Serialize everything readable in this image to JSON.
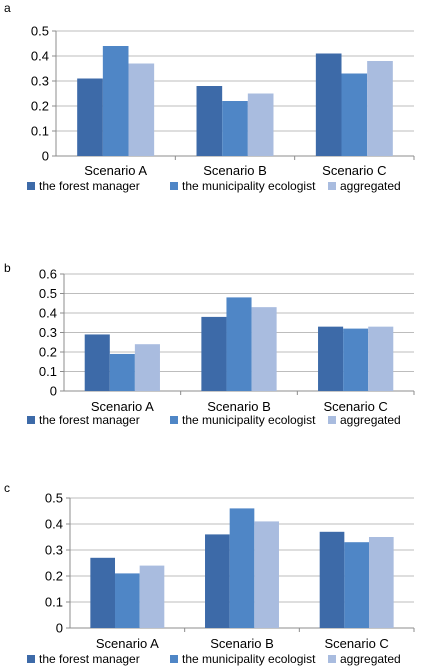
{
  "chart_data": [
    {
      "panel_label": "a",
      "type": "bar",
      "categories": [
        "Scenario A",
        "Scenario B",
        "Scenario C"
      ],
      "series": [
        {
          "name": "the forest manager",
          "values": [
            0.31,
            0.28,
            0.41
          ]
        },
        {
          "name": "the municipality ecologist",
          "values": [
            0.44,
            0.22,
            0.33
          ]
        },
        {
          "name": "aggregated",
          "values": [
            0.37,
            0.25,
            0.38
          ]
        }
      ],
      "yticks": [
        "0",
        "0.1",
        "0.2",
        "0.3",
        "0.4",
        "0.5"
      ],
      "ylim": [
        0,
        0.5
      ],
      "grid": true,
      "legend": "bottom"
    },
    {
      "panel_label": "b",
      "type": "bar",
      "categories": [
        "Scenario A",
        "Scenario B",
        "Scenario C"
      ],
      "series": [
        {
          "name": "the forest manager",
          "values": [
            0.29,
            0.38,
            0.33
          ]
        },
        {
          "name": "the municipality ecologist",
          "values": [
            0.19,
            0.48,
            0.32
          ]
        },
        {
          "name": "aggregated",
          "values": [
            0.24,
            0.43,
            0.33
          ]
        }
      ],
      "yticks": [
        "0",
        "0.1",
        "0.2",
        "0.3",
        "0.4",
        "0.5",
        "0.6"
      ],
      "ylim": [
        0,
        0.6
      ],
      "grid": true,
      "legend": "bottom"
    },
    {
      "panel_label": "c",
      "type": "bar",
      "categories": [
        "Scenario A",
        "Scenario B",
        "Scenario C"
      ],
      "series": [
        {
          "name": "the forest manager",
          "values": [
            0.27,
            0.36,
            0.37
          ]
        },
        {
          "name": "the municipality ecologist",
          "values": [
            0.21,
            0.46,
            0.33
          ]
        },
        {
          "name": "aggregated",
          "values": [
            0.24,
            0.41,
            0.35
          ]
        }
      ],
      "yticks": [
        "0",
        "0.1",
        "0.2",
        "0.3",
        "0.4",
        "0.5"
      ],
      "ylim": [
        0,
        0.5
      ],
      "grid": true,
      "legend": "bottom"
    }
  ],
  "colors": {
    "series": [
      "#3d6aa8",
      "#4f86c6",
      "#a9bcdf"
    ],
    "grid": "#bdbdbd",
    "axis": "#8c8c8c"
  }
}
